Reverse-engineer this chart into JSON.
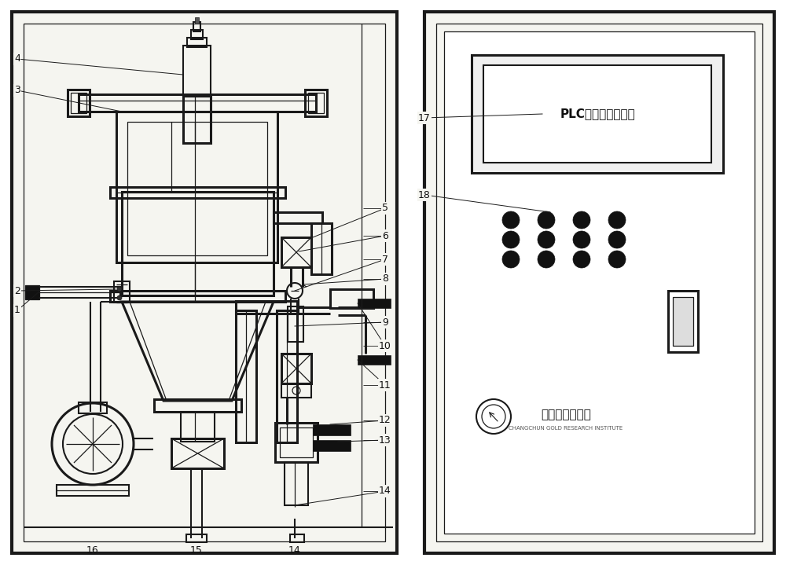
{
  "bg_color": "#ffffff",
  "panel_bg": "#ffffff",
  "line_color": "#1a1a1a",
  "plc_text": "PLC预处理控制系统",
  "company_text": "长春黄金研究院",
  "company_sub": "CHANGCHUN GOLD RESEARCH INSTITUTE",
  "lw_outer": 3.0,
  "lw_thick": 2.2,
  "lw_med": 1.5,
  "lw_thin": 0.9,
  "lw_ann": 0.7
}
